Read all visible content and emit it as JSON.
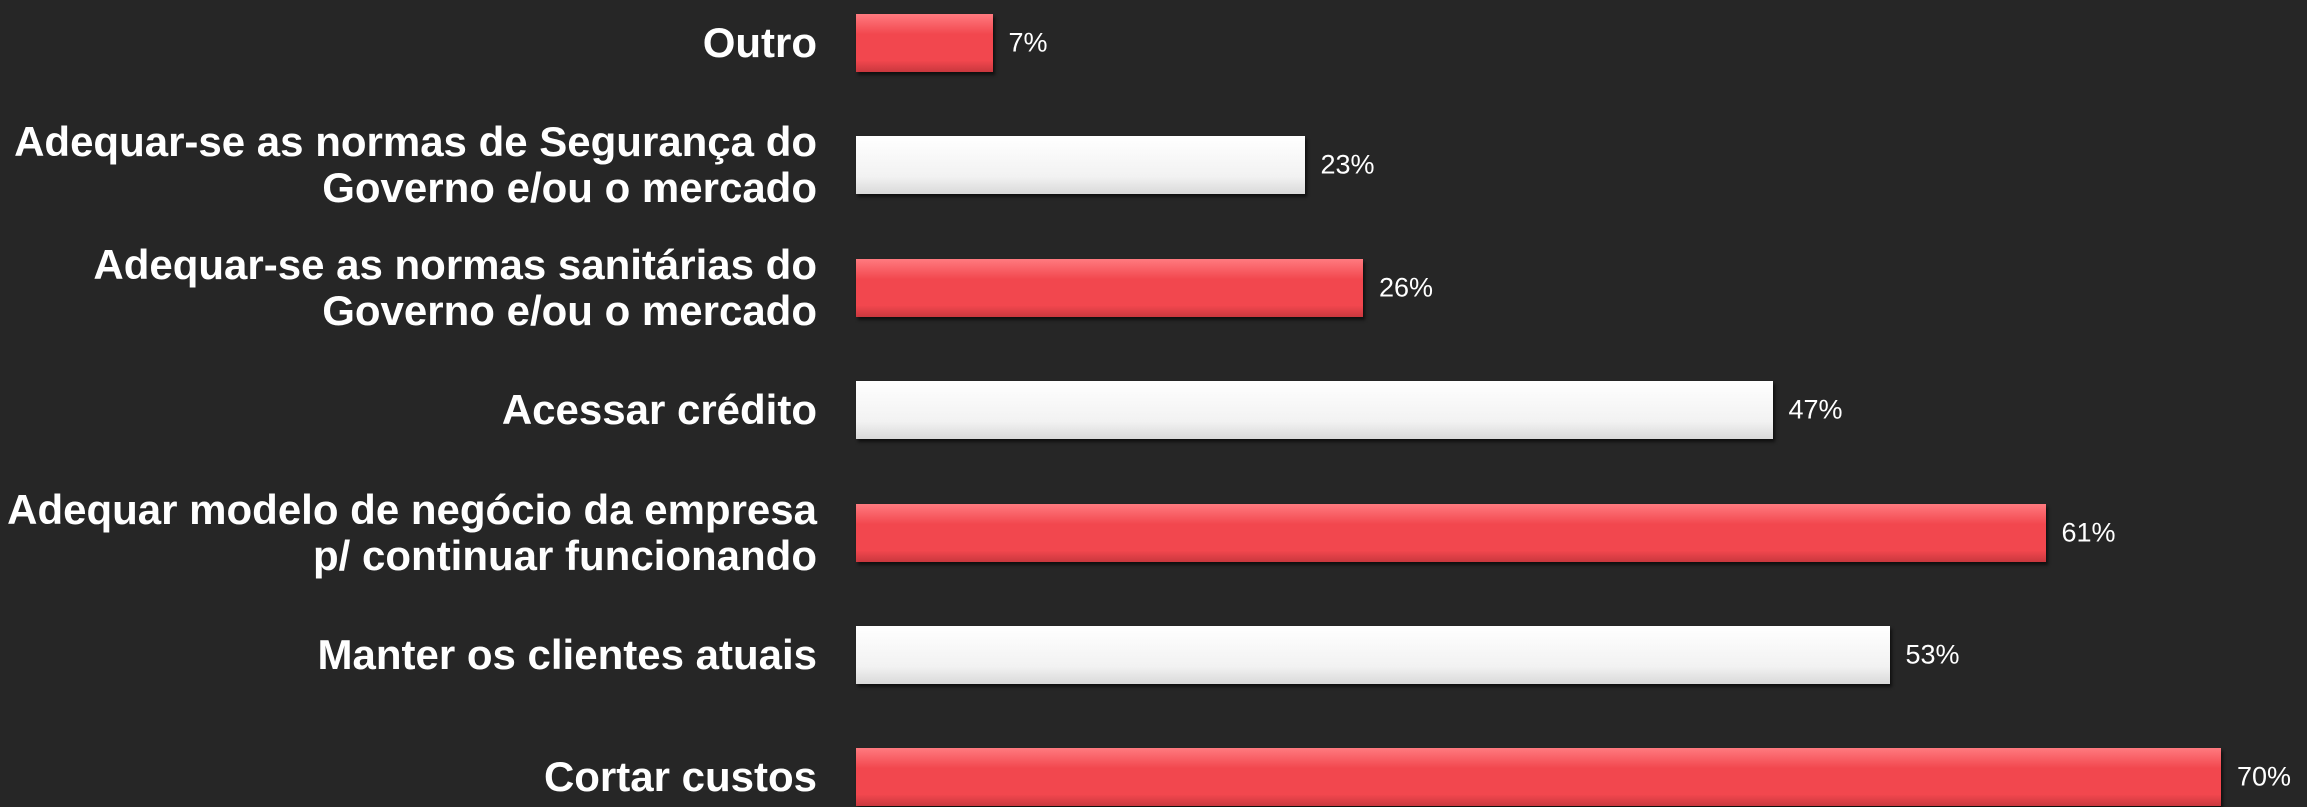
{
  "chart_data": {
    "type": "bar",
    "orientation": "horizontal",
    "categories": [
      "Outro",
      "Adequar-se as normas de Segurança do\nGoverno e/ou o mercado",
      "Adequar-se as normas sanitárias do\nGoverno e/ou o mercado",
      "Acessar crédito",
      "Adequar modelo de negócio da empresa\np/ continuar funcionando",
      "Manter os clientes atuais",
      "Cortar custos"
    ],
    "values": [
      7,
      23,
      26,
      47,
      61,
      53,
      70
    ],
    "value_labels": [
      "7%",
      "23%",
      "26%",
      "47%",
      "61%",
      "53%",
      "70%"
    ],
    "colors": [
      "#f2474e",
      "#ffffff",
      "#f2474e",
      "#ffffff",
      "#f2474e",
      "#ffffff",
      "#f2474e"
    ]
  }
}
